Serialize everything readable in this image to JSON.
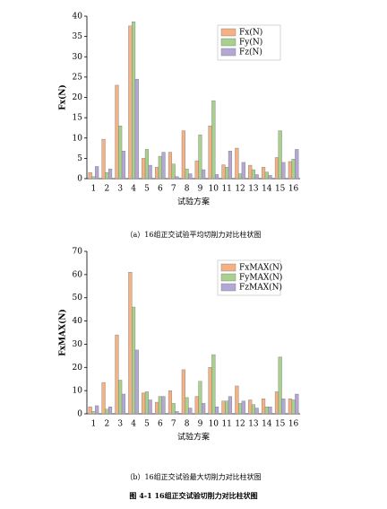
{
  "chart_data": [
    {
      "type": "bar",
      "x_label": "试验方案",
      "y_label": "Fx(N)",
      "caption": "（a）16组正交试验平均切削力对比柱状图",
      "categories": [
        "1",
        "2",
        "3",
        "4",
        "5",
        "6",
        "7",
        "8",
        "9",
        "10",
        "11",
        "12",
        "13",
        "14",
        "15",
        "16"
      ],
      "series": [
        {
          "name": "Fx(N)",
          "color": "#f4b183",
          "values": [
            1.5,
            9.7,
            23,
            37.6,
            5,
            2.8,
            6.5,
            11.8,
            4.4,
            13,
            3.4,
            7.5,
            3.3,
            2.8,
            5.2,
            4.2
          ]
        },
        {
          "name": "Fy(N)",
          "color": "#a9d18e",
          "values": [
            0.5,
            1.5,
            13,
            38.6,
            7.2,
            5.5,
            3.6,
            2.4,
            10.8,
            19.2,
            2.8,
            1.2,
            2.2,
            1.6,
            11.8,
            4.8
          ]
        },
        {
          "name": "Fz(N)",
          "color": "#b4a7d6",
          "values": [
            3,
            2.4,
            6.8,
            24.5,
            3.3,
            6.5,
            0.5,
            1.2,
            2.2,
            1,
            6.8,
            4,
            1,
            0.8,
            4,
            7.2
          ]
        }
      ],
      "ylim": [
        0,
        40
      ],
      "yticks": [
        0,
        5,
        10,
        15,
        20,
        25,
        30,
        35,
        40
      ],
      "legend": "top-right"
    },
    {
      "type": "bar",
      "x_label": "试验方案",
      "y_label": "FxMAX(N)",
      "caption": "（b）16组正交试验最大切削力对比柱状图",
      "categories": [
        "1",
        "2",
        "3",
        "4",
        "5",
        "6",
        "7",
        "8",
        "9",
        "10",
        "11",
        "12",
        "13",
        "14",
        "15",
        "16"
      ],
      "series": [
        {
          "name": "FxMAX(N)",
          "color": "#f4b183",
          "values": [
            3,
            13.5,
            34,
            61,
            9,
            5,
            10,
            19,
            7.5,
            20,
            5.5,
            12,
            6,
            6.5,
            9.5,
            6.5
          ]
        },
        {
          "name": "FyMAX(N)",
          "color": "#a9d18e",
          "values": [
            1,
            2,
            14.5,
            46,
            9.5,
            7.5,
            4.5,
            7,
            14,
            25.5,
            5.5,
            4.5,
            4,
            3,
            24.5,
            6
          ]
        },
        {
          "name": "FzMAX(N)",
          "color": "#b4a7d6",
          "values": [
            3.5,
            3,
            8.5,
            27.5,
            6,
            7.5,
            1,
            2.5,
            4.5,
            3,
            7.5,
            5.5,
            2.5,
            3,
            6.5,
            8.5
          ]
        }
      ],
      "ylim": [
        0,
        70
      ],
      "yticks": [
        0,
        10,
        20,
        30,
        40,
        50,
        60,
        70
      ],
      "legend": "top-right"
    }
  ],
  "figure_caption": "图 4-1 16组正交试验切削力对比柱状图"
}
